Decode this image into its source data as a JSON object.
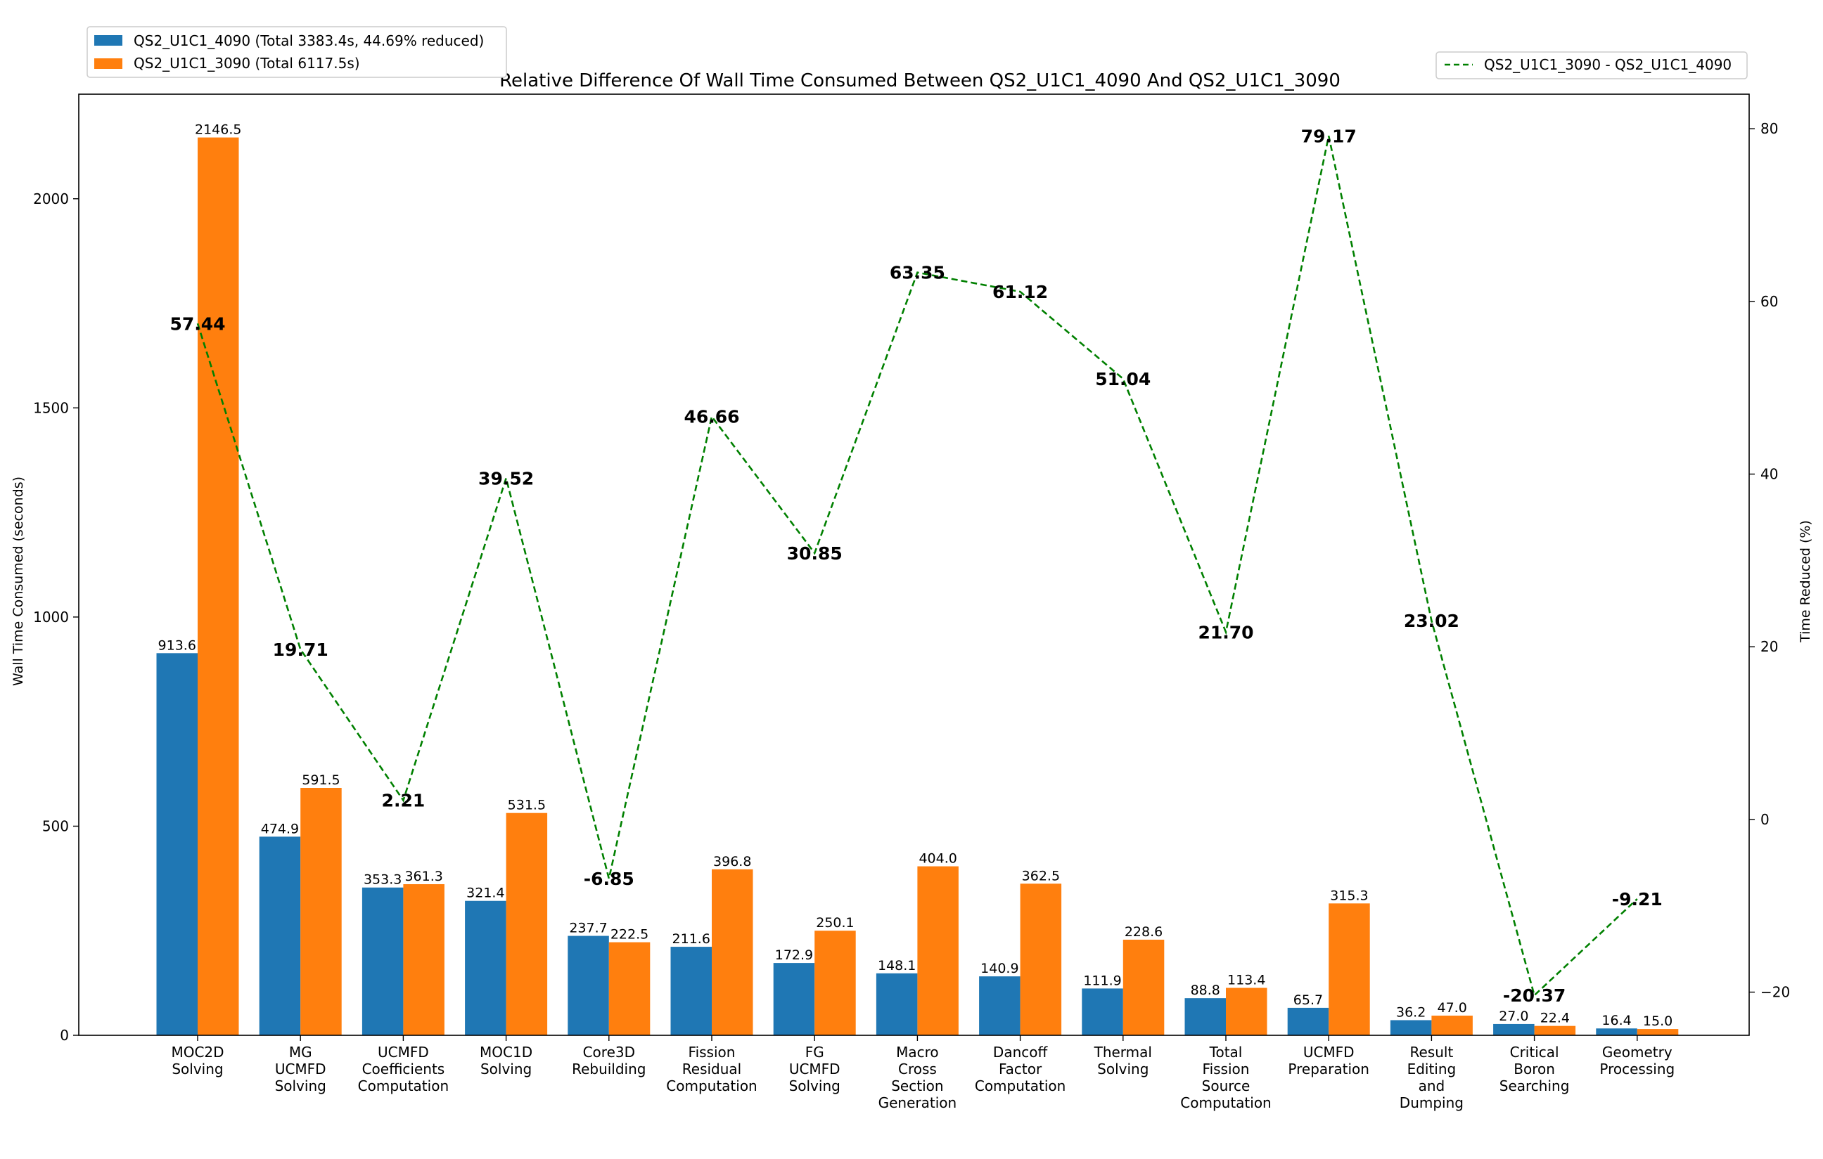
{
  "chart_data": {
    "type": "bar",
    "title": "Relative Difference Of Wall Time Consumed Between QS2_U1C1_4090 And QS2_U1C1_3090",
    "xlabel": "",
    "ylabel": "Wall Time Consumed (seconds)",
    "y2label": "Time Reduced (%)",
    "ylim": [
      0,
      2250
    ],
    "y2lim": [
      -25,
      84
    ],
    "yticks": [
      0,
      500,
      1000,
      1500,
      2000
    ],
    "y2ticks": [
      -20,
      0,
      20,
      40,
      60,
      80
    ],
    "grid": false,
    "legend_left_position": "top-left, outside plot",
    "legend_right_position": "top-right, outside plot",
    "categories": [
      [
        "MOC2D",
        "Solving"
      ],
      [
        "MG",
        "UCMFD",
        "Solving"
      ],
      [
        "UCMFD",
        "Coefficients",
        "Computation"
      ],
      [
        "MOC1D",
        "Solving"
      ],
      [
        "Core3D",
        "Rebuilding"
      ],
      [
        "Fission",
        "Residual",
        "Computation"
      ],
      [
        "FG",
        "UCMFD",
        "Solving"
      ],
      [
        "Macro",
        "Cross",
        "Section",
        "Generation"
      ],
      [
        "Dancoff",
        "Factor",
        "Computation"
      ],
      [
        "Thermal",
        "Solving"
      ],
      [
        "Total",
        "Fission",
        "Source",
        "Computation"
      ],
      [
        "UCMFD",
        "Preparation"
      ],
      [
        "Result",
        "Editing",
        "and",
        "Dumping"
      ],
      [
        "Critical",
        "Boron",
        "Searching"
      ],
      [
        "Geometry",
        "Processing"
      ]
    ],
    "series": [
      {
        "name": "QS2_U1C1_4090 (Total 3383.4s, 44.69% reduced)",
        "color": "#1f77b4",
        "values": [
          913.6,
          474.9,
          353.3,
          321.4,
          237.7,
          211.6,
          172.9,
          148.1,
          140.9,
          111.9,
          88.8,
          65.7,
          36.2,
          27.0,
          16.4
        ],
        "labels": [
          "913.6",
          "474.9",
          "353.3",
          "321.4",
          "237.7",
          "211.6",
          "172.9",
          "148.1",
          "140.9",
          "111.9",
          "88.8",
          "65.7",
          "36.2",
          "27.0",
          "16.4"
        ]
      },
      {
        "name": "QS2_U1C1_3090 (Total 6117.5s)",
        "color": "#ff7f0e",
        "values": [
          2146.5,
          591.5,
          361.3,
          531.5,
          222.5,
          396.8,
          250.1,
          404.0,
          362.5,
          228.6,
          113.4,
          315.3,
          47.0,
          22.4,
          15.0
        ],
        "labels": [
          "2146.5",
          "591.5",
          "361.3",
          "531.5",
          "222.5",
          "396.8",
          "250.1",
          "404.0",
          "362.5",
          "228.6",
          "113.4",
          "315.3",
          "47.0",
          "22.4",
          "15.0"
        ]
      }
    ],
    "line_series": {
      "name": "QS2_U1C1_3090 - QS2_U1C1_4090",
      "color": "#008000",
      "style": "dashed",
      "axis": "right",
      "values": [
        57.44,
        19.71,
        2.21,
        39.52,
        -6.85,
        46.66,
        30.85,
        63.35,
        61.12,
        51.04,
        21.7,
        79.17,
        23.02,
        -20.37,
        -9.21
      ],
      "labels": [
        "57.44",
        "19.71",
        "2.21",
        "39.52",
        "-6.85",
        "46.66",
        "30.85",
        "63.35",
        "61.12",
        "51.04",
        "21.70",
        "79.17",
        "23.02",
        "-20.37",
        "-9.21"
      ]
    }
  }
}
